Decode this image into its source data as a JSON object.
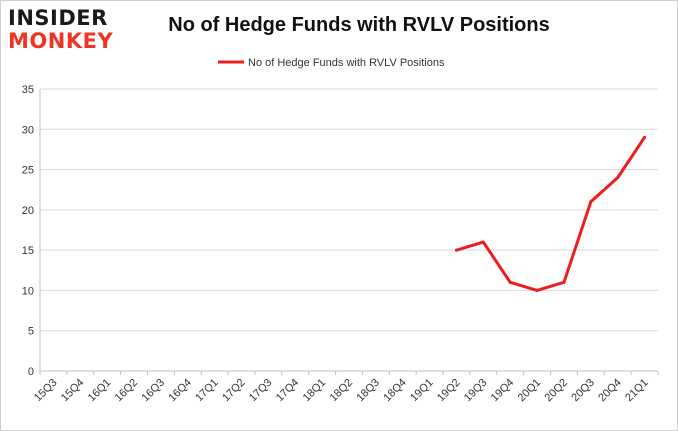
{
  "logo": {
    "line1": "INSIDER",
    "line2": "MONKEY"
  },
  "chart_data": {
    "type": "line",
    "title": "No of Hedge Funds with RVLV Positions",
    "xlabel": "",
    "ylabel": "",
    "categories": [
      "15Q3",
      "15Q4",
      "16Q1",
      "16Q2",
      "16Q3",
      "16Q4",
      "17Q1",
      "17Q2",
      "17Q3",
      "17Q4",
      "18Q1",
      "18Q2",
      "18Q3",
      "18Q4",
      "19Q1",
      "19Q2",
      "19Q3",
      "19Q4",
      "20Q1",
      "20Q2",
      "20Q3",
      "20Q4",
      "21Q1"
    ],
    "series": [
      {
        "name": "No of Hedge Funds with RVLV Positions",
        "color": "#ee1c1c",
        "values": [
          null,
          null,
          null,
          null,
          null,
          null,
          null,
          null,
          null,
          null,
          null,
          null,
          null,
          null,
          null,
          15,
          16,
          11,
          10,
          11,
          21,
          24,
          29
        ]
      }
    ],
    "ylim": [
      0,
      35
    ],
    "yticks": [
      0,
      5,
      10,
      15,
      20,
      25,
      30,
      35
    ],
    "grid": true,
    "legend": "top-center"
  }
}
